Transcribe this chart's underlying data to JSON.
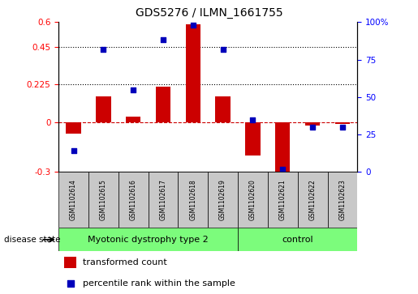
{
  "title": "GDS5276 / ILMN_1661755",
  "categories": [
    "GSM1102614",
    "GSM1102615",
    "GSM1102616",
    "GSM1102617",
    "GSM1102618",
    "GSM1102619",
    "GSM1102620",
    "GSM1102621",
    "GSM1102622",
    "GSM1102623"
  ],
  "transformed_count": [
    -0.07,
    0.155,
    0.03,
    0.21,
    0.585,
    0.155,
    -0.2,
    -0.32,
    -0.02,
    -0.01
  ],
  "percentile_rank": [
    14,
    82,
    55,
    88,
    98,
    82,
    35,
    2,
    30,
    30
  ],
  "groups": [
    {
      "label": "Myotonic dystrophy type 2",
      "start": 0,
      "end": 5,
      "color": "#90EE90"
    },
    {
      "label": "control",
      "start": 6,
      "end": 9,
      "color": "#90EE90"
    }
  ],
  "ylim_left": [
    -0.3,
    0.6
  ],
  "ylim_right": [
    0,
    100
  ],
  "yticks_left": [
    -0.3,
    0.0,
    0.225,
    0.45,
    0.6
  ],
  "ytick_labels_left": [
    "-0.3",
    "0",
    "0.225",
    "0.45",
    "0.6"
  ],
  "yticks_right": [
    0,
    25,
    50,
    75,
    100
  ],
  "ytick_labels_right": [
    "0",
    "25",
    "50",
    "75",
    "100%"
  ],
  "hlines": [
    0.225,
    0.45
  ],
  "bar_color": "#CC0000",
  "dot_color": "#0000BB",
  "zero_line_color": "#CC0000",
  "disease_state_label": "disease state",
  "legend_bar_label": "transformed count",
  "legend_dot_label": "percentile rank within the sample",
  "bar_width": 0.5,
  "dot_size": 25,
  "label_box_color": "#C8C8C8",
  "group_box_color": "#7CFC7C"
}
